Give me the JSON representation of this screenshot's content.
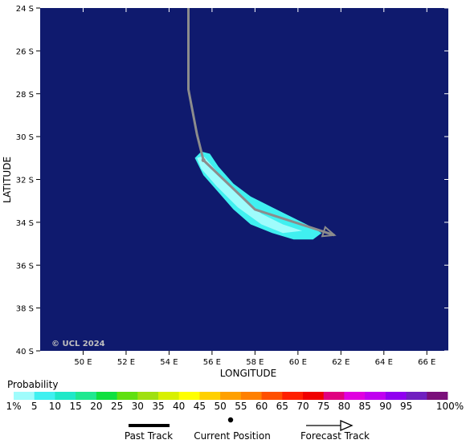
{
  "map": {
    "copyright": "© UCL 2024",
    "x_axis_label": "LONGITUDE",
    "y_axis_label": "LATITUDE",
    "lon_range": [
      48,
      67
    ],
    "lat_range": [
      -40,
      -24
    ],
    "lon_ticks": [
      {
        "value": 50,
        "label": "50 E"
      },
      {
        "value": 52,
        "label": "52 E"
      },
      {
        "value": 54,
        "label": "54 E"
      },
      {
        "value": 56,
        "label": "56 E"
      },
      {
        "value": 58,
        "label": "58 E"
      },
      {
        "value": 60,
        "label": "60 E"
      },
      {
        "value": 62,
        "label": "62 E"
      },
      {
        "value": 64,
        "label": "64 E"
      },
      {
        "value": 66,
        "label": "66 E"
      }
    ],
    "lat_ticks": [
      {
        "value": -24,
        "label": "24 S"
      },
      {
        "value": -26,
        "label": "26 S"
      },
      {
        "value": -28,
        "label": "28 S"
      },
      {
        "value": -30,
        "label": "30 S"
      },
      {
        "value": -32,
        "label": "32 S"
      },
      {
        "value": -34,
        "label": "34 S"
      },
      {
        "value": -36,
        "label": "36 S"
      },
      {
        "value": -38,
        "label": "38 S"
      },
      {
        "value": -40,
        "label": "40 S"
      }
    ],
    "background_color": "#0f1a6e",
    "track": {
      "past": [
        [
          54.9,
          -24.0
        ],
        [
          54.9,
          -27.8
        ],
        [
          55.3,
          -29.9
        ],
        [
          55.6,
          -31.1
        ]
      ],
      "forecast": [
        [
          55.6,
          -31.1
        ],
        [
          58.0,
          -33.4
        ],
        [
          61.7,
          -34.6
        ]
      ],
      "color": "#8c8c8c"
    },
    "probability_area": {
      "outer": {
        "color": "#40f0f0",
        "polygon": [
          [
            55.2,
            -31.0
          ],
          [
            55.5,
            -30.7
          ],
          [
            55.9,
            -30.8
          ],
          [
            56.3,
            -31.4
          ],
          [
            57.0,
            -32.2
          ],
          [
            57.8,
            -32.8
          ],
          [
            58.8,
            -33.3
          ],
          [
            59.8,
            -33.8
          ],
          [
            60.6,
            -34.2
          ],
          [
            61.1,
            -34.5
          ],
          [
            60.7,
            -34.8
          ],
          [
            59.8,
            -34.8
          ],
          [
            58.8,
            -34.5
          ],
          [
            57.8,
            -34.1
          ],
          [
            57.0,
            -33.4
          ],
          [
            56.3,
            -32.6
          ],
          [
            55.6,
            -31.8
          ]
        ]
      },
      "inner": {
        "color": "#9ffcfc",
        "polygon": [
          [
            55.3,
            -31.0
          ],
          [
            55.6,
            -30.9
          ],
          [
            56.2,
            -31.6
          ],
          [
            57.2,
            -32.7
          ],
          [
            58.3,
            -33.6
          ],
          [
            59.3,
            -34.1
          ],
          [
            60.2,
            -34.4
          ],
          [
            59.3,
            -34.5
          ],
          [
            58.3,
            -34.1
          ],
          [
            57.2,
            -33.3
          ],
          [
            56.2,
            -32.3
          ],
          [
            55.5,
            -31.5
          ]
        ]
      }
    }
  },
  "legend": {
    "title": "Probability",
    "labels": [
      "1%",
      "5",
      "10",
      "15",
      "20",
      "25",
      "30",
      "35",
      "40",
      "45",
      "50",
      "55",
      "60",
      "65",
      "70",
      "75",
      "80",
      "85",
      "90",
      "95",
      "100%"
    ],
    "colors": [
      "#9ffcfc",
      "#40f0f0",
      "#20e8c8",
      "#20e890",
      "#10e040",
      "#60e010",
      "#a0e010",
      "#d8f000",
      "#ffff00",
      "#ffd000",
      "#ffa000",
      "#ff8000",
      "#ff5000",
      "#ff2000",
      "#f00000",
      "#e00080",
      "#e000e0",
      "#c000f0",
      "#9000f0",
      "#7020c0",
      "#7a0f7a"
    ]
  },
  "track_key": {
    "past_label": "Past Track",
    "current_label": "Current Position",
    "forecast_label": "Forecast Track"
  }
}
